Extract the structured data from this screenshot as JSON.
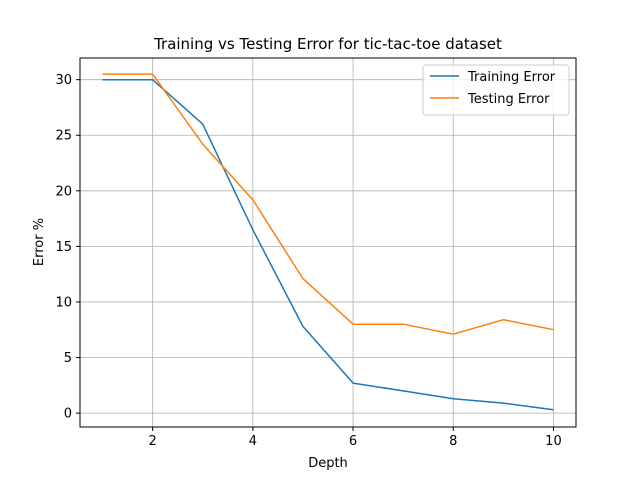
{
  "chart_data": {
    "type": "line",
    "title": "Training vs Testing Error for tic-tac-toe dataset",
    "xlabel": "Depth",
    "ylabel": "Error %",
    "xlim": [
      0.55,
      10.45
    ],
    "ylim": [
      -1.25,
      31.95
    ],
    "xticks": [
      2,
      4,
      6,
      8,
      10
    ],
    "yticks": [
      0,
      5,
      10,
      15,
      20,
      25,
      30
    ],
    "grid": true,
    "legend_position": "top-right",
    "x": [
      1,
      2,
      3,
      4,
      5,
      6,
      7,
      8,
      9,
      10
    ],
    "series": [
      {
        "name": "Training Error",
        "color": "#1f77b4",
        "values": [
          30.0,
          30.0,
          26.0,
          16.5,
          7.8,
          2.7,
          2.0,
          1.3,
          0.9,
          0.3
        ]
      },
      {
        "name": "Testing Error",
        "color": "#ff7f0e",
        "values": [
          30.5,
          30.5,
          24.2,
          19.2,
          12.1,
          8.0,
          8.0,
          7.1,
          8.4,
          7.5
        ]
      }
    ]
  }
}
